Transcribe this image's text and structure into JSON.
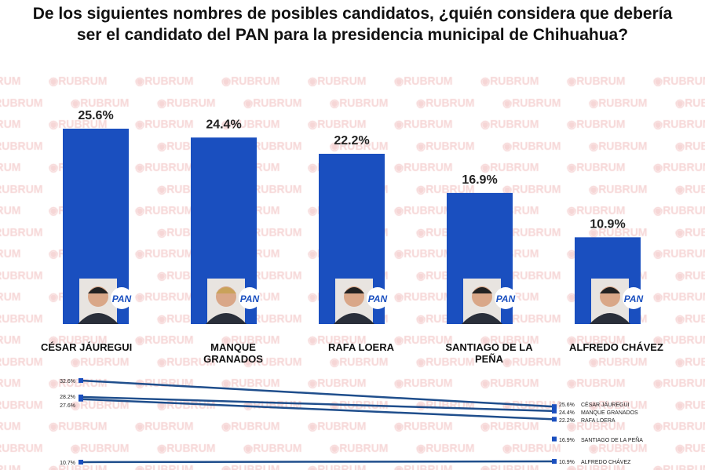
{
  "title": "De los siguientes nombres de posibles candidatos, ¿quién considera que debería ser el candidato del PAN para la presidencia municipal de Chihuahua?",
  "watermark": "◉RUBRUM",
  "colors": {
    "bar": "#1a4fbf",
    "line": "#1f4e8c",
    "watermark": "#f6d6d6"
  },
  "chart_data": [
    {
      "type": "bar",
      "title": "De los siguientes nombres de posibles candidatos, ¿quién considera que debería ser el candidato del PAN para la presidencia municipal de Chihuahua?",
      "categories": [
        "CÉSAR JÁUREGUI",
        "MANQUE GRANADOS",
        "RAFA LOERA",
        "SANTIAGO DE LA PEÑA",
        "ALFREDO CHÁVEZ"
      ],
      "values": [
        25.6,
        24.4,
        22.2,
        16.9,
        10.9
      ],
      "labels": [
        "25.6%",
        "24.4%",
        "22.2%",
        "16.9%",
        "10.9%"
      ],
      "badge": "PAN",
      "ylim": [
        0,
        26
      ]
    },
    {
      "type": "line",
      "title": "",
      "series": [
        {
          "name": "CÉSAR JÁUREGUI",
          "values": [
            32.6,
            25.6
          ],
          "labels": [
            "32.6%",
            "25.6%"
          ]
        },
        {
          "name": "MANQUE GRANADOS",
          "values": [
            28.2,
            24.4
          ],
          "labels": [
            "28.2%",
            "24.4%"
          ]
        },
        {
          "name": "RAFA LOERA",
          "values": [
            27.6,
            22.2
          ],
          "labels": [
            "27.6%",
            "22.2%"
          ]
        },
        {
          "name": "SANTIAGO DE LA PEÑA",
          "values": [
            null,
            16.9
          ],
          "labels": [
            "",
            "16.9%"
          ]
        },
        {
          "name": "ALFREDO CHÁVEZ",
          "values": [
            10.7,
            10.9
          ],
          "labels": [
            "10.7%",
            "10.9%"
          ]
        }
      ]
    }
  ]
}
